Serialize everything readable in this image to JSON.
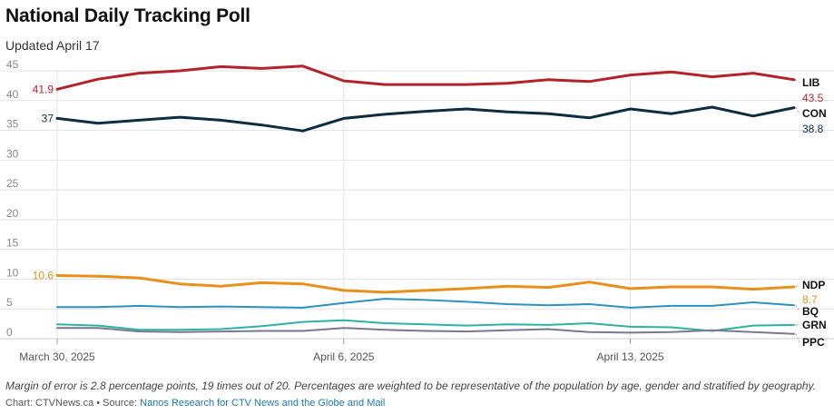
{
  "title": "National Daily Tracking Poll",
  "subtitle": "Updated April 17",
  "note": "Margin of error is 2.8 percentage points, 19 times out of 20. Percentages are weighted to be representative of the population by age, gender and stratified by geography.",
  "credit": {
    "prefix": "Chart: CTVNews.ca • Source: ",
    "source": "Nanos Research for CTV News and the Globe and Mail"
  },
  "chart_data": {
    "type": "line",
    "title": "National Daily Tracking Poll",
    "subtitle": "Updated April 17",
    "xlabel": "",
    "ylabel": "",
    "ylim": [
      0,
      45
    ],
    "yticks": [
      0,
      5,
      10,
      15,
      20,
      25,
      30,
      35,
      40,
      45
    ],
    "grid": true,
    "x": [
      "2025-03-30",
      "2025-03-31",
      "2025-04-01",
      "2025-04-02",
      "2025-04-03",
      "2025-04-04",
      "2025-04-05",
      "2025-04-06",
      "2025-04-07",
      "2025-04-08",
      "2025-04-09",
      "2025-04-10",
      "2025-04-11",
      "2025-04-12",
      "2025-04-13",
      "2025-04-14",
      "2025-04-15",
      "2025-04-16",
      "2025-04-17"
    ],
    "xticks": [
      {
        "x": "2025-03-30",
        "label": "March 30, 2025"
      },
      {
        "x": "2025-04-06",
        "label": "April 6, 2025"
      },
      {
        "x": "2025-04-13",
        "label": "April 13, 2025"
      }
    ],
    "series": [
      {
        "name": "LIB",
        "color": "#b5232a",
        "start_label": "41.9",
        "end_label": "43.5",
        "values": [
          41.9,
          43.6,
          44.6,
          45.0,
          45.7,
          45.4,
          45.8,
          43.3,
          42.7,
          42.7,
          42.7,
          42.9,
          43.5,
          43.2,
          44.3,
          44.8,
          44.0,
          44.6,
          43.5
        ]
      },
      {
        "name": "CON",
        "color": "#0d2d43",
        "start_label": "37",
        "end_label": "38.8",
        "values": [
          37.0,
          36.2,
          36.7,
          37.2,
          36.7,
          35.9,
          34.9,
          37.0,
          37.7,
          38.2,
          38.6,
          38.1,
          37.8,
          37.1,
          38.6,
          37.8,
          38.9,
          37.4,
          38.8
        ]
      },
      {
        "name": "NDP",
        "color": "#e8901a",
        "start_label": "10.6",
        "end_label": "8.7",
        "values": [
          10.6,
          10.5,
          10.2,
          9.2,
          8.8,
          9.4,
          9.2,
          8.1,
          7.8,
          8.1,
          8.4,
          8.8,
          8.6,
          9.5,
          8.4,
          8.7,
          8.7,
          8.3,
          8.7
        ]
      },
      {
        "name": "BQ",
        "color": "#2a92c4",
        "start_label": "",
        "end_label": "",
        "values": [
          5.3,
          5.3,
          5.5,
          5.3,
          5.4,
          5.3,
          5.2,
          6.0,
          6.7,
          6.5,
          6.2,
          5.8,
          5.6,
          5.8,
          5.2,
          5.5,
          5.5,
          6.1,
          5.6
        ]
      },
      {
        "name": "GRN",
        "color": "#2bb3a3",
        "start_label": "",
        "end_label": "",
        "values": [
          2.4,
          2.2,
          1.5,
          1.5,
          1.6,
          2.1,
          2.8,
          3.1,
          2.6,
          2.4,
          2.2,
          2.4,
          2.3,
          2.6,
          2.0,
          1.9,
          1.3,
          2.2,
          2.3
        ]
      },
      {
        "name": "PPC",
        "color": "#7a7890",
        "start_label": "",
        "end_label": "",
        "values": [
          1.8,
          1.8,
          1.2,
          1.1,
          1.2,
          1.3,
          1.3,
          1.8,
          1.5,
          1.3,
          1.2,
          1.4,
          1.6,
          1.1,
          1.0,
          1.1,
          1.4,
          1.1,
          0.8
        ]
      }
    ]
  }
}
